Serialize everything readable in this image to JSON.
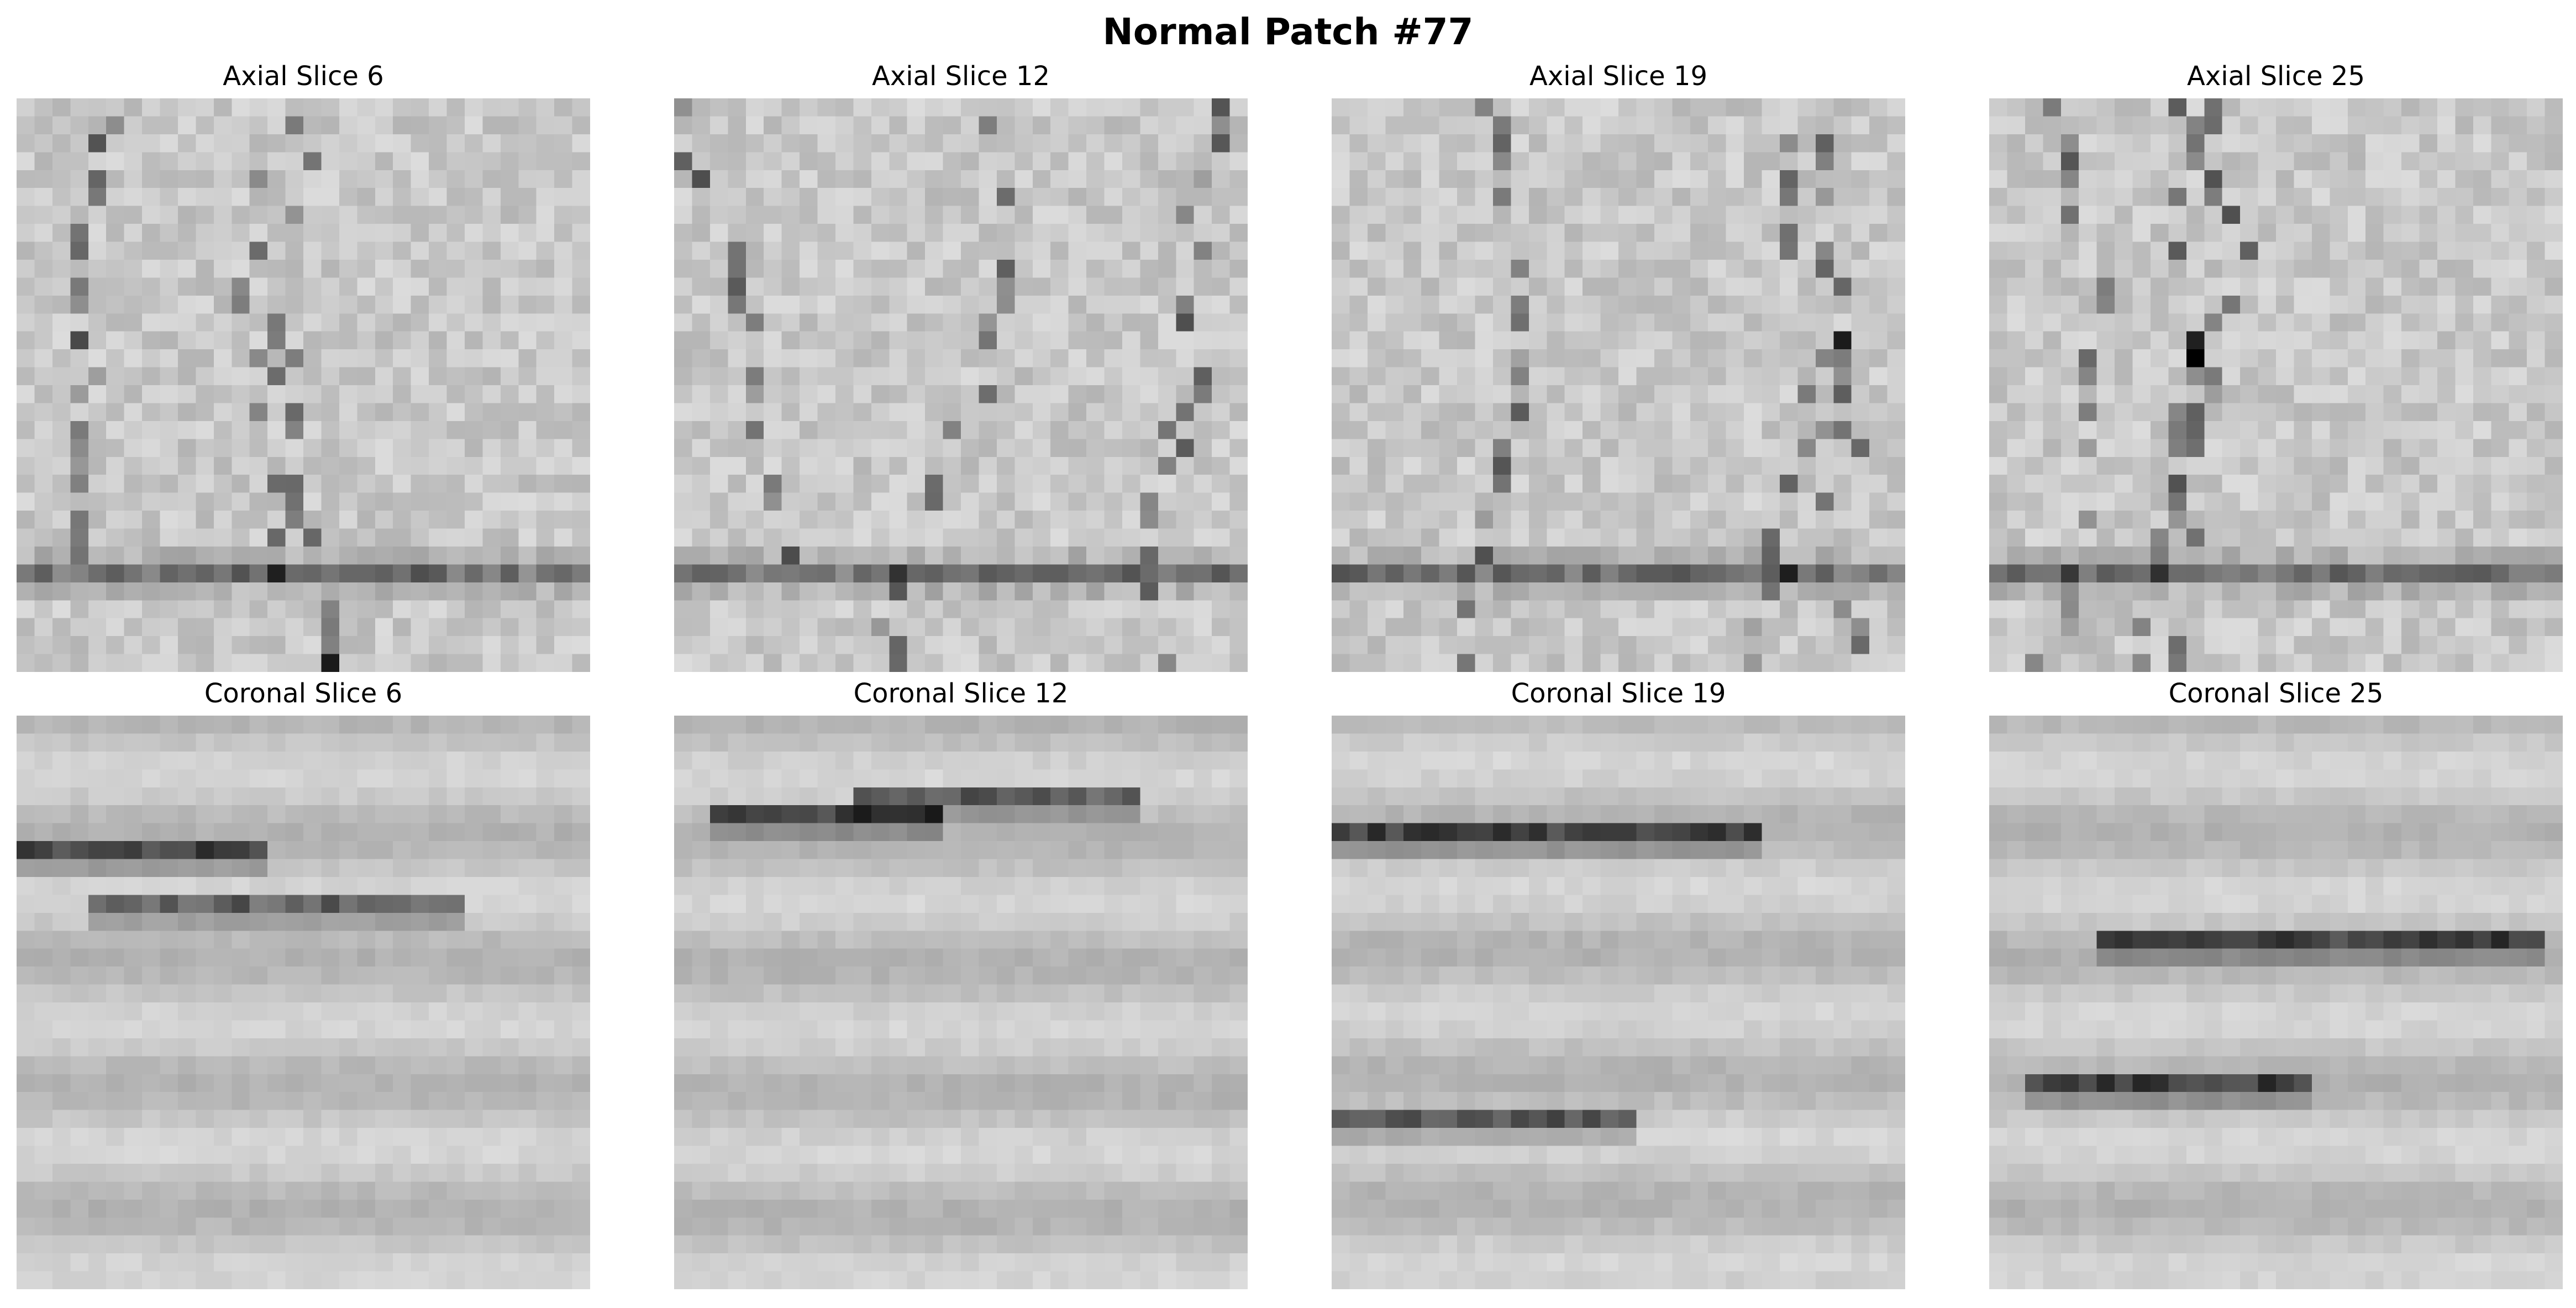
{
  "figure": {
    "title": "Normal Patch #77"
  },
  "panels": [
    {
      "title": "Axial Slice 6",
      "kind": "axial",
      "seed": 6
    },
    {
      "title": "Axial Slice 12",
      "kind": "axial",
      "seed": 12
    },
    {
      "title": "Axial Slice 19",
      "kind": "axial",
      "seed": 19
    },
    {
      "title": "Axial Slice 25",
      "kind": "axial",
      "seed": 25
    },
    {
      "title": "Coronal Slice 6",
      "kind": "coronal",
      "seed": 106
    },
    {
      "title": "Coronal Slice 12",
      "kind": "coronal",
      "seed": 112
    },
    {
      "title": "Coronal Slice 19",
      "kind": "coronal",
      "seed": 119
    },
    {
      "title": "Coronal Slice 25",
      "kind": "coronal",
      "seed": 125
    }
  ],
  "colormap": "gray"
}
